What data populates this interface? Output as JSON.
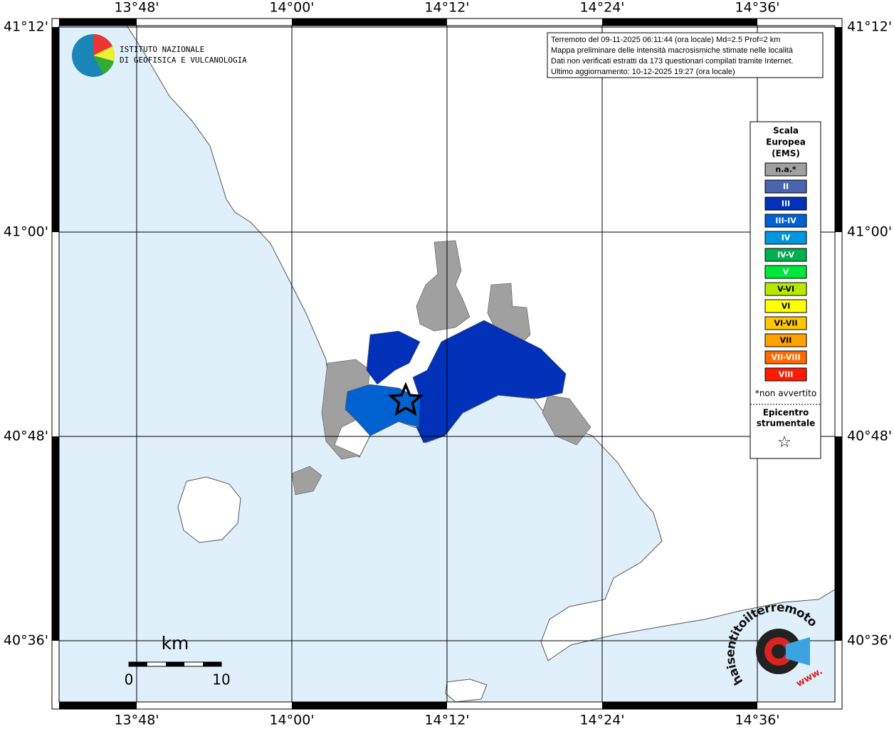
{
  "map": {
    "lon_labels": [
      "13°48'",
      "14°00'",
      "14°12'",
      "14°24'",
      "14°36'"
    ],
    "lat_labels": [
      "41°12'",
      "41°00'",
      "40°48'",
      "40°36'"
    ]
  },
  "logo": {
    "line1": "ISTITUTO NAZIONALE",
    "line2": "DI GEOFISICA E VULCANOLOGIA"
  },
  "info": {
    "lines": [
      "Terremoto del 09-11-2025 06:11:44 (ora locale) Md=2.5 Prof=2 km",
      "Mappa preliminare delle intensità macrosismiche stimate nelle località",
      "Dati non verificati estratti da 173 questionari compilati tramite Internet.",
      "Ultimo aggiornamento: 10-12-2025 19:27 (ora locale)"
    ]
  },
  "legend": {
    "title": [
      "Scala",
      "Europea",
      "(EMS)"
    ],
    "classes": [
      {
        "label": "n.a.*",
        "color": "#a0a0a0"
      },
      {
        "label": "II",
        "color": "#4a65ad"
      },
      {
        "label": "III",
        "color": "#0031b8"
      },
      {
        "label": "III-IV",
        "color": "#0062d0"
      },
      {
        "label": "IV",
        "color": "#0097e0"
      },
      {
        "label": "IV-V",
        "color": "#00b050"
      },
      {
        "label": "V",
        "color": "#00e53a"
      },
      {
        "label": "V-VI",
        "color": "#b5ea00"
      },
      {
        "label": "VI",
        "color": "#ffff00"
      },
      {
        "label": "VI-VII",
        "color": "#ffc800"
      },
      {
        "label": "VII",
        "color": "#ffa200"
      },
      {
        "label": "VII-VIII",
        "color": "#ff6a00"
      },
      {
        "label": "VIII",
        "color": "#ff1a00"
      }
    ],
    "note": "*non avvertito",
    "epicenter": [
      "Epicentro",
      "strumentale"
    ],
    "epicenter_symbol": "☆"
  },
  "scale_bar": {
    "unit": "km",
    "start": "0",
    "end": "10"
  },
  "watermark": {
    "text": "haisentitoilterremoto.it",
    "prefix": "www."
  }
}
